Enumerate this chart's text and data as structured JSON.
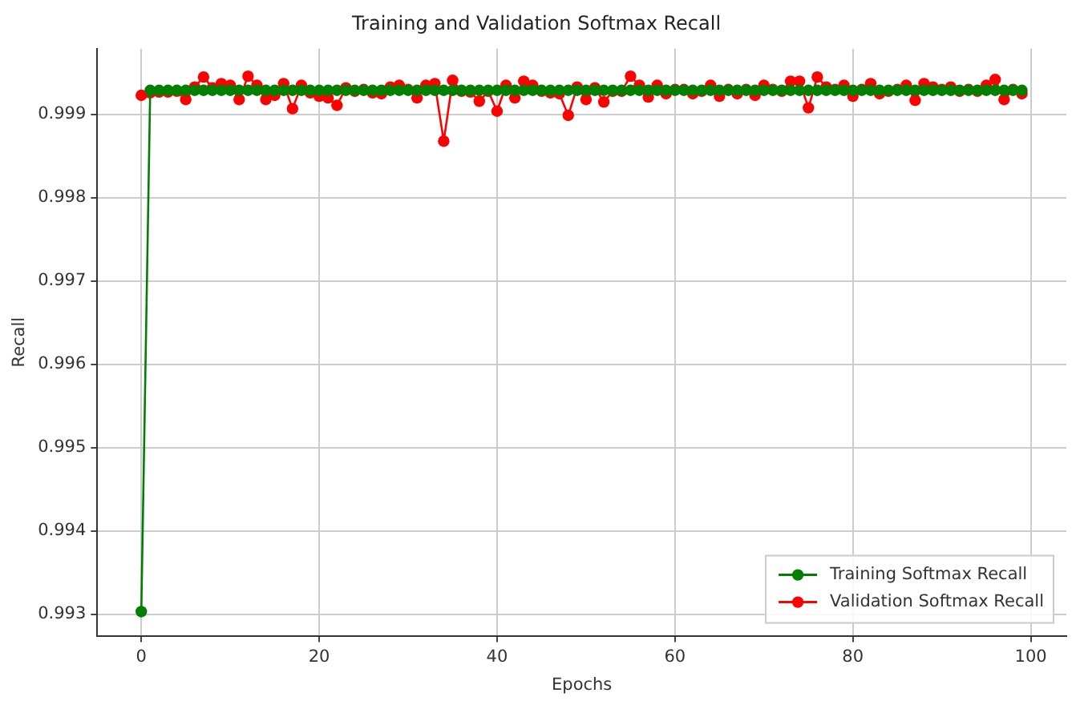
{
  "chart_data": {
    "type": "line",
    "title": "Training and Validation Softmax Recall",
    "xlabel": "Epochs",
    "ylabel": "Recall",
    "x": [
      0,
      1,
      2,
      3,
      4,
      5,
      6,
      7,
      8,
      9,
      10,
      11,
      12,
      13,
      14,
      15,
      16,
      17,
      18,
      19,
      20,
      21,
      22,
      23,
      24,
      25,
      26,
      27,
      28,
      29,
      30,
      31,
      32,
      33,
      34,
      35,
      36,
      37,
      38,
      39,
      40,
      41,
      42,
      43,
      44,
      45,
      46,
      47,
      48,
      49,
      50,
      51,
      52,
      53,
      54,
      55,
      56,
      57,
      58,
      59,
      60,
      61,
      62,
      63,
      64,
      65,
      66,
      67,
      68,
      69,
      70,
      71,
      72,
      73,
      74,
      75,
      76,
      77,
      78,
      79,
      80,
      81,
      82,
      83,
      84,
      85,
      86,
      87,
      88,
      89,
      90,
      91,
      92,
      93,
      94,
      95,
      96,
      97,
      98,
      99
    ],
    "series": [
      {
        "name": "Training Softmax Recall",
        "color": "#008000",
        "values": [
          0.99303,
          0.99929,
          0.99929,
          0.99929,
          0.99929,
          0.99929,
          0.99929,
          0.99929,
          0.99929,
          0.99929,
          0.99929,
          0.99929,
          0.99929,
          0.99929,
          0.99929,
          0.99929,
          0.99929,
          0.99929,
          0.99929,
          0.99929,
          0.99929,
          0.99929,
          0.99929,
          0.99929,
          0.99929,
          0.99929,
          0.99929,
          0.99929,
          0.99929,
          0.99929,
          0.99929,
          0.99929,
          0.99929,
          0.99929,
          0.99929,
          0.99929,
          0.99929,
          0.99929,
          0.99929,
          0.99929,
          0.99929,
          0.99929,
          0.99929,
          0.99929,
          0.99929,
          0.99929,
          0.99929,
          0.99929,
          0.99929,
          0.99929,
          0.99929,
          0.99929,
          0.99929,
          0.99929,
          0.99929,
          0.99929,
          0.99929,
          0.99929,
          0.99929,
          0.99929,
          0.99929,
          0.99929,
          0.99929,
          0.99929,
          0.99929,
          0.99929,
          0.99929,
          0.99929,
          0.99929,
          0.99929,
          0.99929,
          0.99929,
          0.99929,
          0.99929,
          0.99929,
          0.99929,
          0.99929,
          0.99929,
          0.99929,
          0.99929,
          0.99929,
          0.99929,
          0.99929,
          0.99929,
          0.99929,
          0.99929,
          0.99929,
          0.99929,
          0.99929,
          0.99929,
          0.99929,
          0.99929,
          0.99929,
          0.99929,
          0.99929,
          0.99929,
          0.99929,
          0.99929,
          0.99929,
          0.99929
        ]
      },
      {
        "name": "Validation Softmax Recall",
        "color": "#ff0000",
        "values": [
          0.99923,
          0.99926,
          0.99927,
          0.99927,
          0.99928,
          0.99918,
          0.99933,
          0.99945,
          0.99932,
          0.99937,
          0.99935,
          0.99918,
          0.99946,
          0.99935,
          0.99918,
          0.99923,
          0.99937,
          0.99907,
          0.99935,
          0.99926,
          0.99922,
          0.9992,
          0.99911,
          0.99932,
          0.99928,
          0.9993,
          0.99926,
          0.99925,
          0.99933,
          0.99935,
          0.9993,
          0.9992,
          0.99935,
          0.99937,
          0.99868,
          0.99941,
          0.99928,
          0.99927,
          0.99916,
          0.99928,
          0.99904,
          0.99935,
          0.9992,
          0.9994,
          0.99935,
          0.99928,
          0.99926,
          0.99925,
          0.99899,
          0.99933,
          0.99918,
          0.99932,
          0.99915,
          0.99928,
          0.99928,
          0.99946,
          0.99935,
          0.99921,
          0.99935,
          0.99925,
          0.9993,
          0.9993,
          0.99925,
          0.99928,
          0.99935,
          0.99922,
          0.9993,
          0.99925,
          0.9993,
          0.99923,
          0.99935,
          0.9993,
          0.99928,
          0.9994,
          0.9994,
          0.99908,
          0.99945,
          0.99933,
          0.9993,
          0.99935,
          0.99922,
          0.9993,
          0.99937,
          0.99925,
          0.99928,
          0.9993,
          0.99935,
          0.99917,
          0.99937,
          0.99933,
          0.9993,
          0.99933,
          0.99928,
          0.9993,
          0.99928,
          0.99935,
          0.99942,
          0.99918,
          0.9993,
          0.99925
        ]
      }
    ],
    "xlim": [
      -4.95,
      104
    ],
    "xticks": [
      0,
      20,
      40,
      60,
      80,
      100
    ],
    "ylim": [
      0.99274,
      0.99979
    ],
    "yticks": [
      0.993,
      0.994,
      0.995,
      0.996,
      0.997,
      0.998,
      0.999
    ],
    "grid": true,
    "legend": "bottom right",
    "marker": "circle",
    "line_style": "solid"
  }
}
